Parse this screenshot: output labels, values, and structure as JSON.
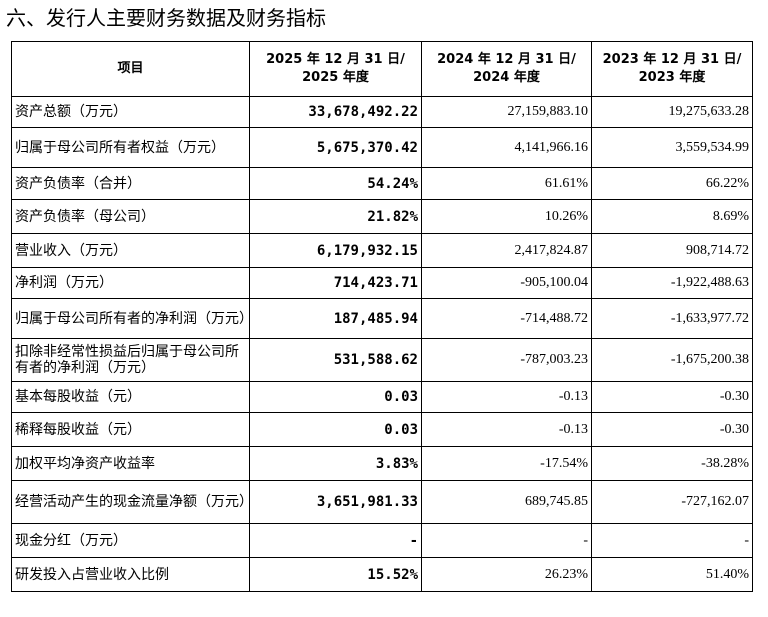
{
  "title": "六、发行人主要财务数据及财务指标",
  "header": {
    "item": "项目",
    "col1_line1": "2025 年 12 月 31 日/",
    "col1_line2": "2025 年度",
    "col2_line1": "2024 年 12 月 31 日/",
    "col2_line2": "2024 年度",
    "col3_line1": "2023 年 12 月 31 日/",
    "col3_line2": "2023 年度"
  },
  "rows": [
    {
      "label": "资产总额（万元）",
      "v2025": "33,678,492.22",
      "v2024": "27,159,883.10",
      "v2023": "19,275,633.28"
    },
    {
      "label": "归属于母公司所有者权益（万元）",
      "v2025": "5,675,370.42",
      "v2024": "4,141,966.16",
      "v2023": "3,559,534.99"
    },
    {
      "label": "资产负债率（合并）",
      "v2025": "54.24%",
      "v2024": "61.61%",
      "v2023": "66.22%"
    },
    {
      "label": "资产负债率（母公司）",
      "v2025": "21.82%",
      "v2024": "10.26%",
      "v2023": "8.69%"
    },
    {
      "label": "营业收入（万元）",
      "v2025": "6,179,932.15",
      "v2024": "2,417,824.87",
      "v2023": "908,714.72"
    },
    {
      "label": "净利润（万元）",
      "v2025": "714,423.71",
      "v2024": "-905,100.04",
      "v2023": "-1,922,488.63"
    },
    {
      "label": "归属于母公司所有者的净利润（万元）",
      "v2025": "187,485.94",
      "v2024": "-714,488.72",
      "v2023": "-1,633,977.72"
    },
    {
      "label": "扣除非经常性损益后归属于母公司所有者的净利润（万元）",
      "v2025": "531,588.62",
      "v2024": "-787,003.23",
      "v2023": "-1,675,200.38"
    },
    {
      "label": "基本每股收益（元）",
      "v2025": "0.03",
      "v2024": "-0.13",
      "v2023": "-0.30"
    },
    {
      "label": "稀释每股收益（元）",
      "v2025": "0.03",
      "v2024": "-0.13",
      "v2023": "-0.30"
    },
    {
      "label": "加权平均净资产收益率",
      "v2025": "3.83%",
      "v2024": "-17.54%",
      "v2023": "-38.28%"
    },
    {
      "label": "经营活动产生的现金流量净额（万元）",
      "v2025": "3,651,981.33",
      "v2024": "689,745.85",
      "v2023": "-727,162.07"
    },
    {
      "label": "现金分红（万元）",
      "v2025": "-",
      "v2024": "-",
      "v2023": "-"
    },
    {
      "label": "研发投入占营业收入比例",
      "v2025": "15.52%",
      "v2024": "26.23%",
      "v2023": "51.40%"
    }
  ]
}
